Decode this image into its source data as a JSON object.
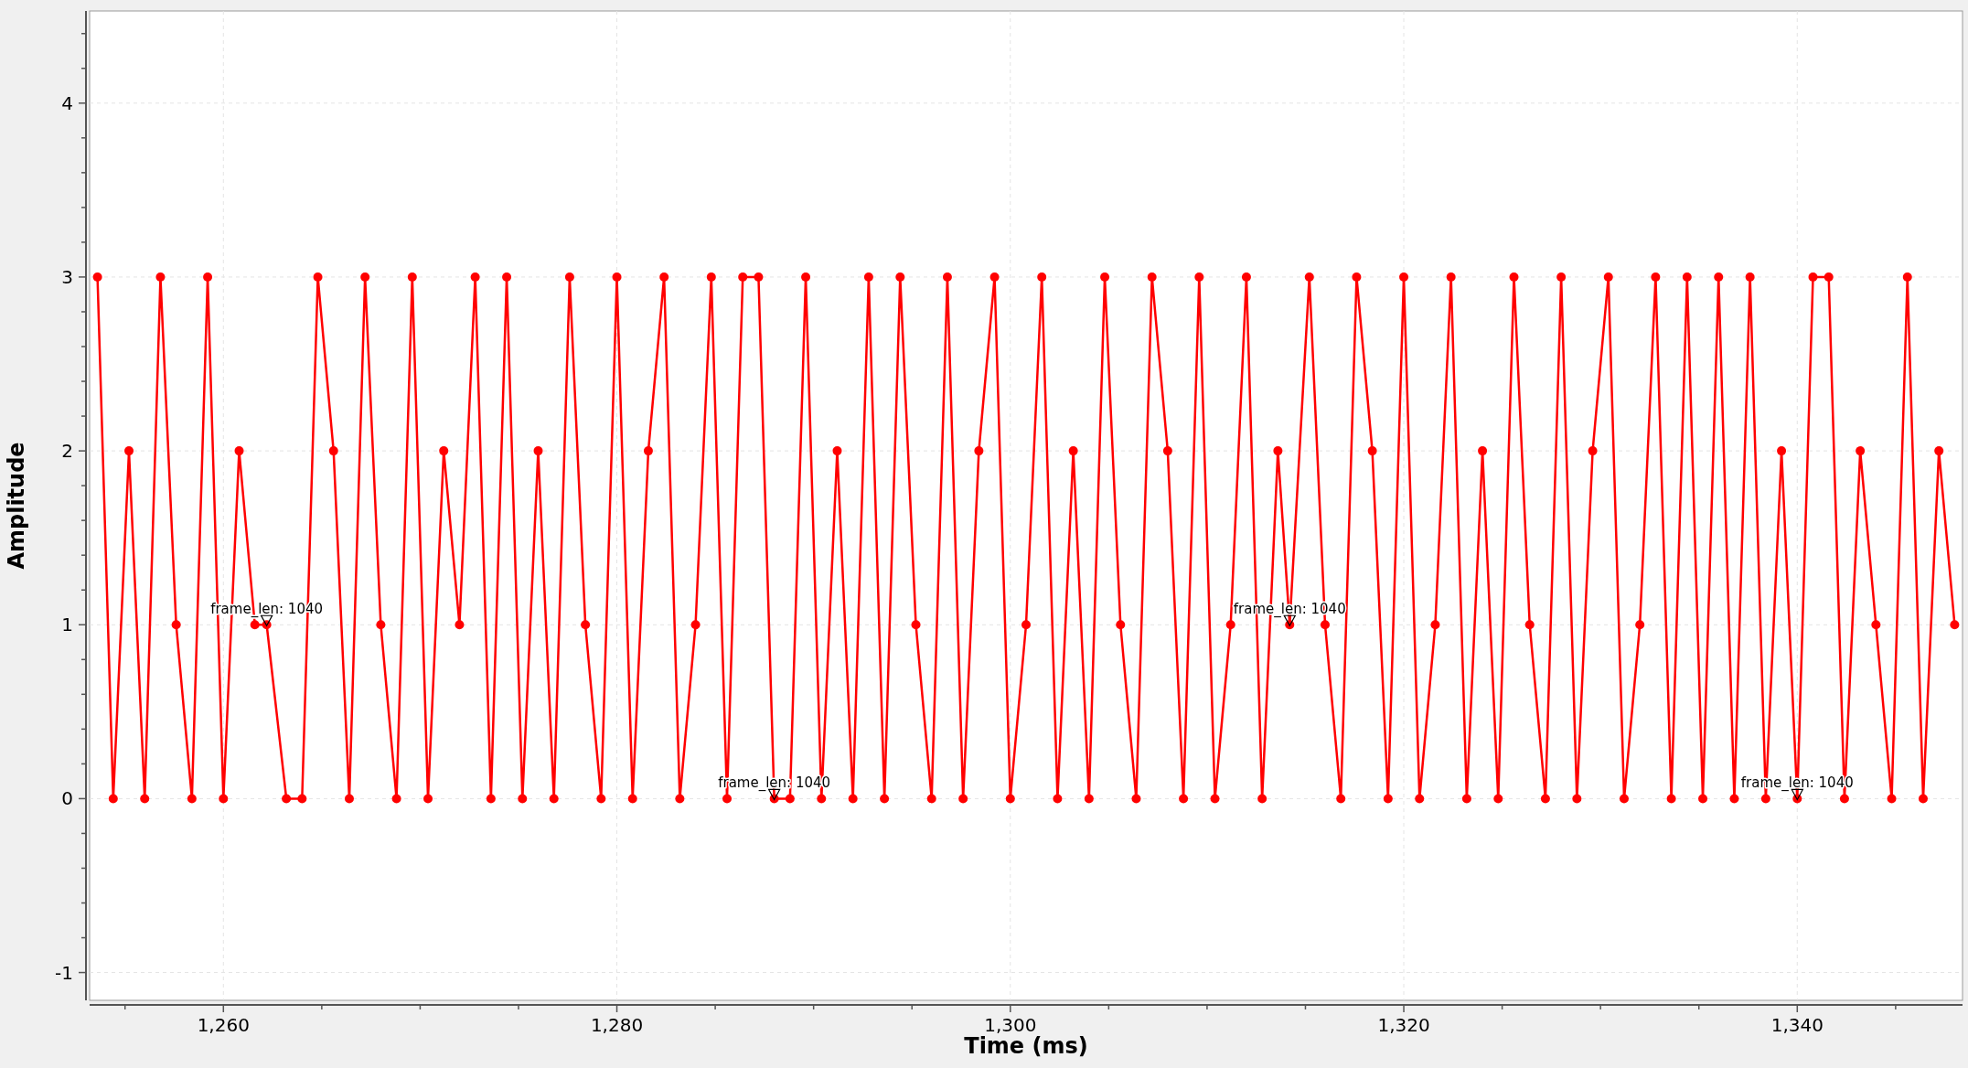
{
  "chart_data": {
    "type": "line",
    "xlabel": "Time (ms)",
    "ylabel": "Amplitude",
    "xlim": [
      1253.2,
      1348.4
    ],
    "ylim": [
      -1.16,
      4.53
    ],
    "xticks": [
      {
        "value": 1255,
        "label": null
      },
      {
        "value": 1260,
        "label": "1,260"
      },
      {
        "value": 1265,
        "label": null
      },
      {
        "value": 1270,
        "label": null
      },
      {
        "value": 1275,
        "label": null
      },
      {
        "value": 1280,
        "label": "1,280"
      },
      {
        "value": 1285,
        "label": null
      },
      {
        "value": 1290,
        "label": null
      },
      {
        "value": 1295,
        "label": null
      },
      {
        "value": 1300,
        "label": "1,300"
      },
      {
        "value": 1305,
        "label": null
      },
      {
        "value": 1310,
        "label": null
      },
      {
        "value": 1315,
        "label": null
      },
      {
        "value": 1320,
        "label": "1,320"
      },
      {
        "value": 1325,
        "label": null
      },
      {
        "value": 1330,
        "label": null
      },
      {
        "value": 1335,
        "label": null
      },
      {
        "value": 1340,
        "label": "1,340"
      },
      {
        "value": 1345,
        "label": null
      }
    ],
    "yticks": [
      {
        "value": -1,
        "label": "-1"
      },
      {
        "value": -0.8,
        "label": null
      },
      {
        "value": -0.6,
        "label": null
      },
      {
        "value": -0.4,
        "label": null
      },
      {
        "value": -0.2,
        "label": null
      },
      {
        "value": 0,
        "label": "0"
      },
      {
        "value": 0.2,
        "label": null
      },
      {
        "value": 0.4,
        "label": null
      },
      {
        "value": 0.6,
        "label": null
      },
      {
        "value": 0.8,
        "label": null
      },
      {
        "value": 1,
        "label": "1"
      },
      {
        "value": 1.2,
        "label": null
      },
      {
        "value": 1.4,
        "label": null
      },
      {
        "value": 1.6,
        "label": null
      },
      {
        "value": 1.8,
        "label": null
      },
      {
        "value": 2,
        "label": "2"
      },
      {
        "value": 2.2,
        "label": null
      },
      {
        "value": 2.4,
        "label": null
      },
      {
        "value": 2.6,
        "label": null
      },
      {
        "value": 2.8,
        "label": null
      },
      {
        "value": 3,
        "label": "3"
      },
      {
        "value": 3.2,
        "label": null
      },
      {
        "value": 3.4,
        "label": null
      },
      {
        "value": 3.6,
        "label": null
      },
      {
        "value": 3.8,
        "label": null
      },
      {
        "value": 4,
        "label": "4"
      },
      {
        "value": 4.2,
        "label": null
      },
      {
        "value": 4.4,
        "label": null
      }
    ],
    "grid": true,
    "marker": "circle",
    "line_style": "solid",
    "x": [
      1253.6,
      1254.4,
      1255.2,
      1256.0,
      1256.8,
      1257.6,
      1258.4,
      1259.2,
      1260.0,
      1260.8,
      1261.6,
      1262.2,
      1263.2,
      1264.0,
      1264.8,
      1265.6,
      1266.4,
      1267.2,
      1268.0,
      1268.8,
      1269.6,
      1270.4,
      1271.2,
      1272.0,
      1272.8,
      1273.6,
      1274.4,
      1275.2,
      1276.0,
      1276.8,
      1277.6,
      1278.4,
      1279.2,
      1280.0,
      1280.8,
      1281.6,
      1282.4,
      1283.2,
      1284.0,
      1284.8,
      1285.6,
      1286.4,
      1287.2,
      1288.0,
      1288.8,
      1289.6,
      1290.4,
      1291.2,
      1292.0,
      1292.8,
      1293.6,
      1294.4,
      1295.2,
      1296.0,
      1296.8,
      1297.6,
      1298.4,
      1299.2,
      1300.0,
      1300.8,
      1301.6,
      1302.4,
      1303.2,
      1304.0,
      1304.8,
      1305.6,
      1306.4,
      1307.2,
      1308.0,
      1308.8,
      1309.6,
      1310.4,
      1311.2,
      1312.0,
      1312.8,
      1313.6,
      1314.2,
      1315.2,
      1316.0,
      1316.8,
      1317.6,
      1318.4,
      1319.2,
      1320.0,
      1320.8,
      1321.6,
      1322.4,
      1323.2,
      1324.0,
      1324.8,
      1325.6,
      1326.4,
      1327.2,
      1328.0,
      1328.8,
      1329.6,
      1330.4,
      1331.2,
      1332.0,
      1332.8,
      1333.6,
      1334.4,
      1335.2,
      1336.0,
      1336.8,
      1337.6,
      1338.4,
      1339.2,
      1340.0,
      1340.8,
      1341.6,
      1342.4,
      1343.2,
      1344.0,
      1344.8,
      1345.6,
      1346.4,
      1347.2,
      1348.0
    ],
    "series": [
      {
        "color": "#ff0000",
        "values": [
          3,
          0,
          2,
          0,
          3,
          1,
          0,
          3,
          0,
          2,
          1,
          1,
          0,
          0,
          3,
          2,
          0,
          3,
          1,
          0,
          3,
          0,
          2,
          1,
          3,
          0,
          3,
          0,
          2,
          0,
          3,
          1,
          0,
          3,
          0,
          2,
          3,
          0,
          1,
          3,
          0,
          3,
          3,
          0,
          0,
          3,
          0,
          2,
          0,
          3,
          0,
          3,
          1,
          0,
          3,
          0,
          2,
          3,
          0,
          1,
          3,
          0,
          2,
          0,
          3,
          1,
          0,
          3,
          2,
          0,
          3,
          0,
          1,
          3,
          0,
          2,
          1,
          3,
          1,
          0,
          3,
          2,
          0,
          3,
          0,
          1,
          3,
          0,
          2,
          0,
          3,
          1,
          0,
          3,
          0,
          2,
          3,
          0,
          1,
          3,
          0,
          3,
          0,
          3,
          0,
          3,
          0,
          2,
          0,
          3,
          3,
          0,
          2,
          1,
          0,
          3,
          0,
          2,
          1
        ]
      }
    ],
    "annotations": [
      {
        "text": "frame_len: 1040",
        "x": 1262.2,
        "y": 1
      },
      {
        "text": "frame_len: 1040",
        "x": 1288,
        "y": 0
      },
      {
        "text": "frame_len: 1040",
        "x": 1314.2,
        "y": 1
      },
      {
        "text": "frame_len: 1040",
        "x": 1340,
        "y": 0
      }
    ]
  }
}
